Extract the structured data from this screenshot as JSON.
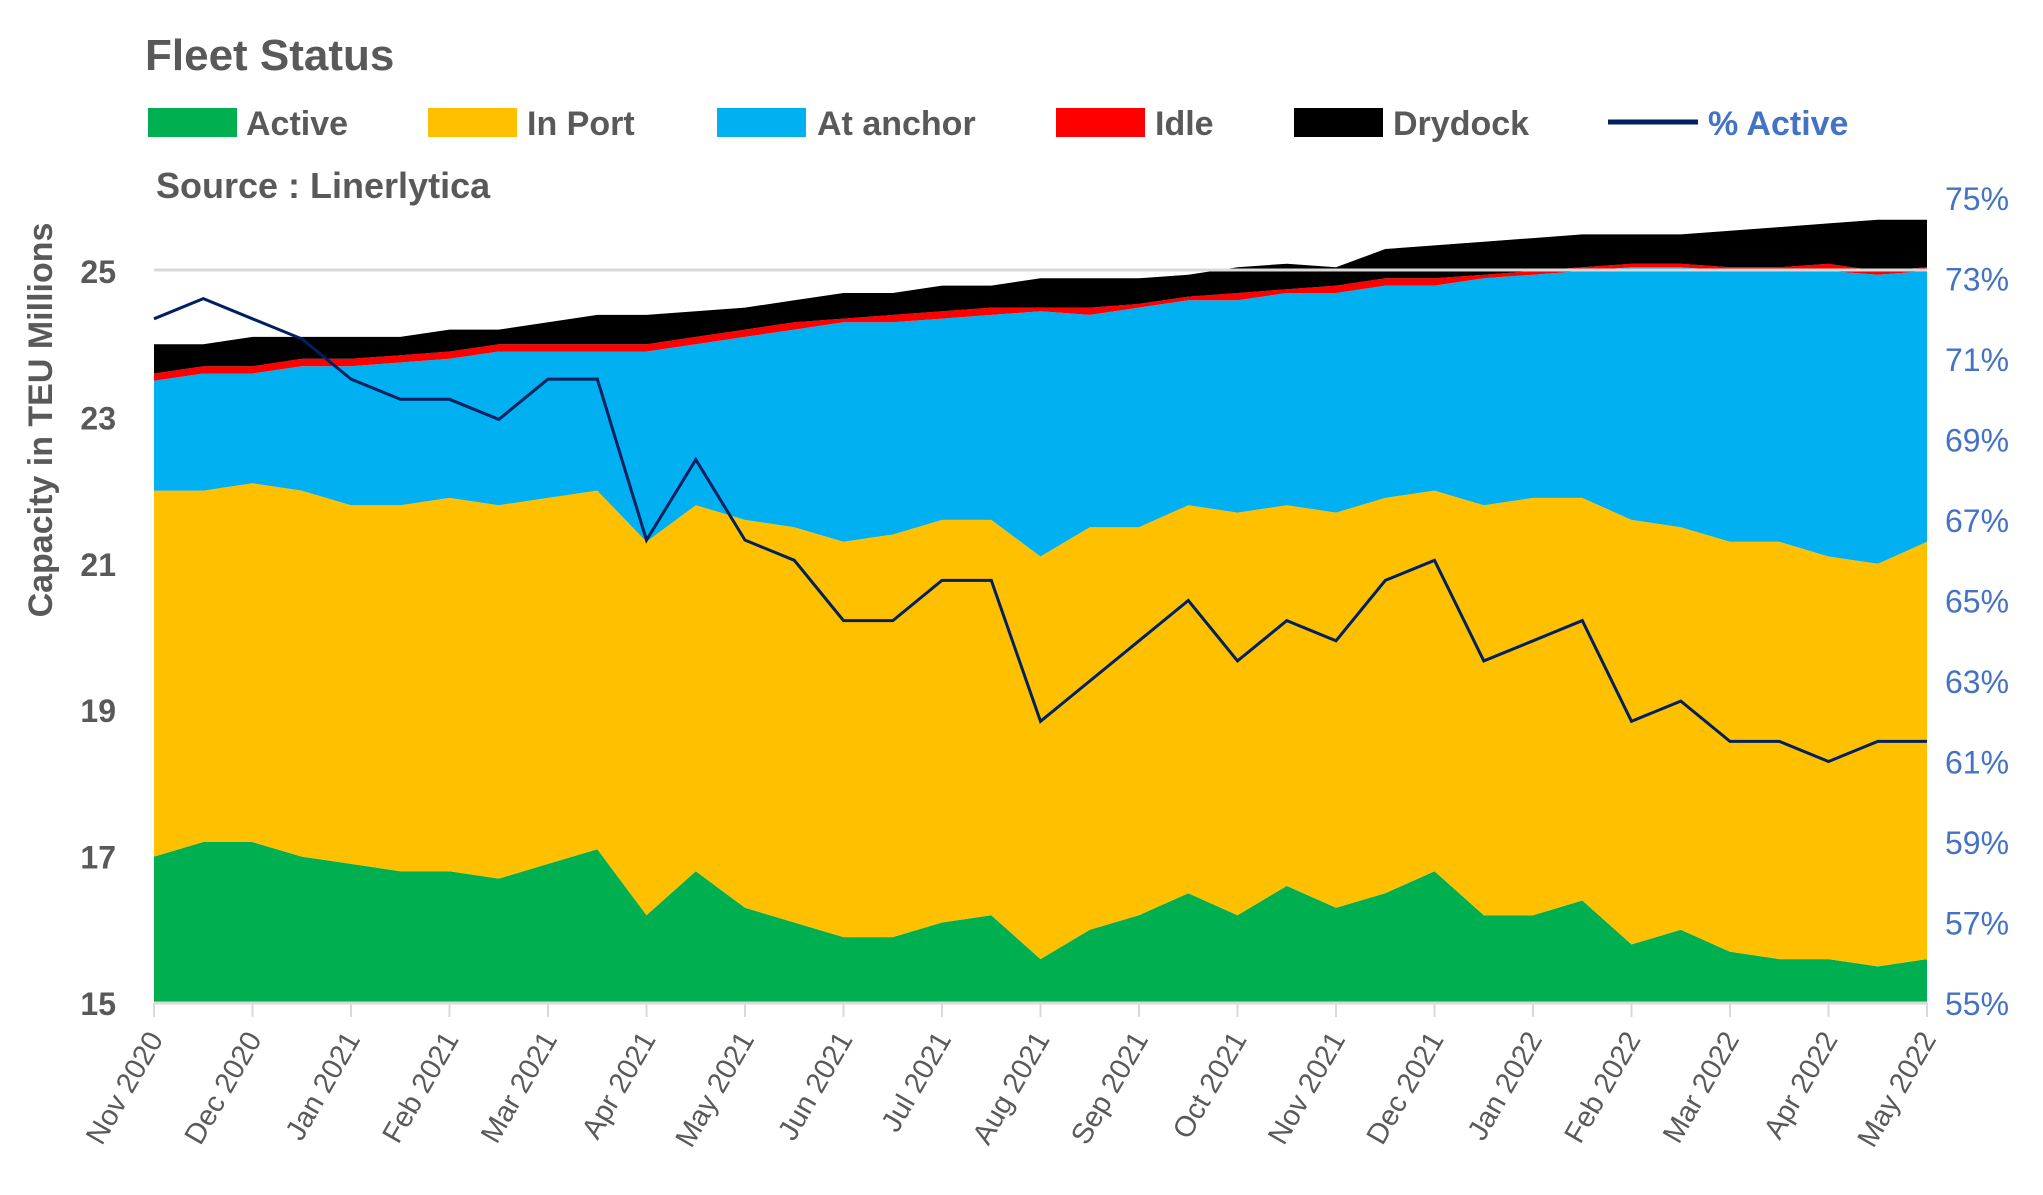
{
  "chart_data": {
    "type": "area",
    "stacked": true,
    "title": "Fleet Status",
    "source": "Source : Linerlytica",
    "ylabel": "Capacity in TEU Millions",
    "ylim": [
      15,
      25.8
    ],
    "yticks": [
      "15",
      "17",
      "19",
      "21",
      "23",
      "25"
    ],
    "y2lim": [
      55,
      75
    ],
    "y2ticks": [
      "55%",
      "57%",
      "59%",
      "61%",
      "63%",
      "65%",
      "67%",
      "69%",
      "71%",
      "73%",
      "75%"
    ],
    "xticks": [
      "Nov 2020",
      "Dec 2020",
      "Jan 2021",
      "Feb 2021",
      "Mar 2021",
      "Apr 2021",
      "May 2021",
      "Jun 2021",
      "Jul 2021",
      "Aug 2021",
      "Sep 2021",
      "Oct 2021",
      "Nov 2021",
      "Dec 2021",
      "Jan 2022",
      "Feb 2022",
      "Mar 2022",
      "Apr 2022",
      "May 2022"
    ],
    "grid": "y=25 only",
    "legend_position": "top",
    "series": [
      {
        "name": "Active",
        "color": "#00b050",
        "values": [
          17.0,
          17.2,
          17.2,
          17.0,
          16.9,
          16.8,
          16.8,
          16.7,
          16.9,
          17.1,
          16.2,
          16.8,
          16.3,
          16.1,
          15.9,
          15.9,
          16.1,
          16.2,
          15.6,
          16.0,
          16.2,
          16.5,
          16.2,
          16.6,
          16.3,
          16.5,
          16.8,
          16.2,
          16.2,
          16.4,
          15.8,
          16.0,
          15.7,
          15.6,
          15.6,
          15.5,
          15.6
        ]
      },
      {
        "name": "In Port",
        "color": "#ffc000",
        "values": [
          5.0,
          4.8,
          4.9,
          5.0,
          4.9,
          5.0,
          5.1,
          5.1,
          5.0,
          4.9,
          5.1,
          5.0,
          5.3,
          5.4,
          5.4,
          5.5,
          5.5,
          5.4,
          5.5,
          5.5,
          5.3,
          5.3,
          5.5,
          5.2,
          5.4,
          5.4,
          5.2,
          5.6,
          5.7,
          5.5,
          5.8,
          5.5,
          5.6,
          5.7,
          5.5,
          5.5,
          5.7
        ]
      },
      {
        "name": "At anchor",
        "color": "#00b0f0",
        "values": [
          1.5,
          1.6,
          1.5,
          1.7,
          1.9,
          1.95,
          1.9,
          2.1,
          2.0,
          1.9,
          2.6,
          2.2,
          2.5,
          2.7,
          3.0,
          2.9,
          2.75,
          2.8,
          3.35,
          2.9,
          3.0,
          2.8,
          2.9,
          2.9,
          3.0,
          2.9,
          2.8,
          3.1,
          3.05,
          3.1,
          3.45,
          3.55,
          3.7,
          3.7,
          3.9,
          3.95,
          3.7
        ]
      },
      {
        "name": "Idle",
        "color": "#ff0000",
        "values": [
          0.1,
          0.1,
          0.1,
          0.1,
          0.1,
          0.1,
          0.1,
          0.1,
          0.1,
          0.1,
          0.1,
          0.1,
          0.1,
          0.1,
          0.05,
          0.1,
          0.1,
          0.1,
          0.05,
          0.1,
          0.05,
          0.05,
          0.1,
          0.05,
          0.1,
          0.1,
          0.1,
          0.05,
          0.05,
          0.05,
          0.05,
          0.05,
          0.05,
          0.05,
          0.1,
          0.05,
          0.05
        ]
      },
      {
        "name": "Drydock",
        "color": "#000000",
        "values": [
          0.4,
          0.3,
          0.4,
          0.3,
          0.3,
          0.25,
          0.3,
          0.2,
          0.3,
          0.4,
          0.4,
          0.35,
          0.3,
          0.3,
          0.35,
          0.3,
          0.35,
          0.3,
          0.4,
          0.4,
          0.35,
          0.3,
          0.35,
          0.35,
          0.25,
          0.4,
          0.45,
          0.45,
          0.45,
          0.45,
          0.4,
          0.4,
          0.5,
          0.55,
          0.55,
          0.7,
          0.65
        ]
      }
    ],
    "line_series": {
      "name": "% Active",
      "color": "#002060",
      "axis": "right",
      "values": [
        72.0,
        72.5,
        72.0,
        71.5,
        70.5,
        70,
        70,
        69.5,
        70.5,
        70.5,
        66.5,
        68.5,
        66.5,
        66,
        64.5,
        64.5,
        65.5,
        65.5,
        62,
        63,
        64,
        65,
        63.5,
        64.5,
        64,
        65.5,
        66,
        63.5,
        64,
        64.5,
        62,
        62.5,
        61.5,
        61.5,
        61,
        61.5,
        61.5
      ]
    },
    "legend_text_color": "#595959",
    "legend_line_text_color": "#4472c4"
  }
}
